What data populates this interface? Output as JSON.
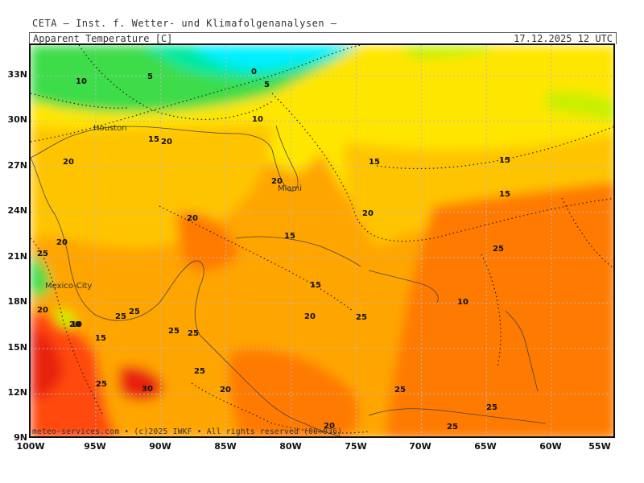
{
  "header": {
    "source": "CETA — Inst. f. Wetter- und Klimafolgenanalysen —",
    "parameter": "Apparent Temperature [C]",
    "valid_time": "17.12.2025 12 UTC"
  },
  "footer": "meteo-services.com • (c)2025 IWKF • All rights reserved (00+036)",
  "colors": {
    "cyan": "#00f0ff",
    "green": "#3ddc4a",
    "yellow_green": "#c8f000",
    "yellow": "#ffe600",
    "light_orange": "#ffc400",
    "orange": "#ffa500",
    "dark_orange": "#ff7a00",
    "red_orange": "#ff4a10",
    "red": "#e82010"
  },
  "axes": {
    "lat_labels": [
      "33N",
      "30N",
      "27N",
      "24N",
      "21N",
      "18N",
      "15N",
      "12N",
      "9N"
    ],
    "lon_labels": [
      "100W",
      "95W",
      "90W",
      "85W",
      "80W",
      "75W",
      "70W",
      "65W",
      "60W",
      "55W"
    ]
  },
  "cities": [
    {
      "name": "Houston"
    },
    {
      "name": "Miami"
    },
    {
      "name": "Mexico-City"
    }
  ],
  "contour_labels": [
    "10",
    "5",
    "0",
    "5",
    "10",
    "15",
    "20",
    "20",
    "15",
    "15",
    "20",
    "15",
    "20",
    "20",
    "15",
    "25",
    "20",
    "25",
    "15",
    "10",
    "20",
    "20",
    "25",
    "25",
    "25",
    "25",
    "20",
    "25",
    "30",
    "25",
    "20",
    "25",
    "25",
    "25",
    "25",
    "20",
    "15",
    "10"
  ]
}
